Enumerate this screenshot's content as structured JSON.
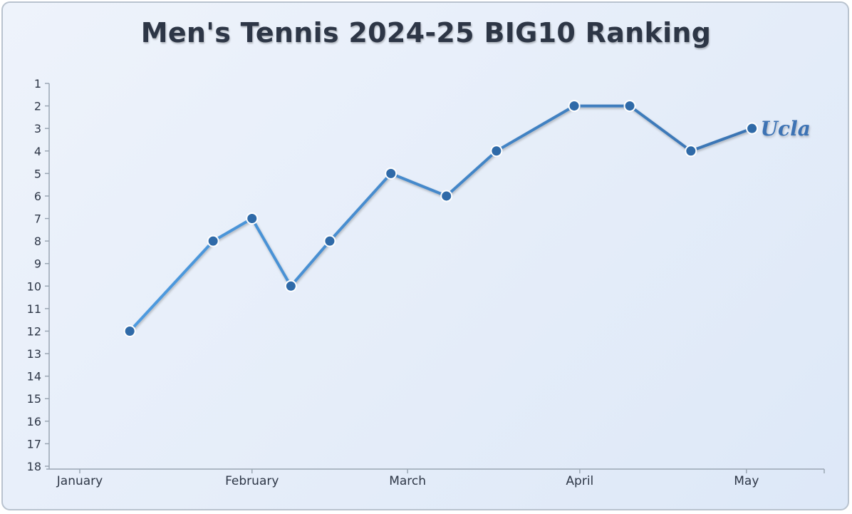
{
  "chart_data": {
    "type": "line",
    "title": "Men's Tennis 2024-25 BIG10 Ranking",
    "xlabel": "",
    "ylabel": "",
    "y_inverted": true,
    "ylim": [
      1,
      18
    ],
    "yticks": [
      1,
      2,
      3,
      4,
      5,
      6,
      7,
      8,
      9,
      10,
      11,
      12,
      13,
      14,
      15,
      16,
      17,
      18
    ],
    "xlim": [
      "2025-01-01",
      "2025-05-15"
    ],
    "month_ticks": [
      {
        "label": "January",
        "date": "2025-01-01"
      },
      {
        "label": "February",
        "date": "2025-02-01"
      },
      {
        "label": "March",
        "date": "2025-03-01"
      },
      {
        "label": "April",
        "date": "2025-04-01"
      },
      {
        "label": "May",
        "date": "2025-05-01"
      }
    ],
    "grid": false,
    "series": [
      {
        "name": "Ucla",
        "points": [
          {
            "x": "2025-01-10",
            "y": 12
          },
          {
            "x": "2025-01-25",
            "y": 8
          },
          {
            "x": "2025-02-01",
            "y": 7
          },
          {
            "x": "2025-02-08",
            "y": 10
          },
          {
            "x": "2025-02-15",
            "y": 8
          },
          {
            "x": "2025-02-26",
            "y": 5
          },
          {
            "x": "2025-03-08",
            "y": 6
          },
          {
            "x": "2025-03-17",
            "y": 4
          },
          {
            "x": "2025-03-31",
            "y": 2
          },
          {
            "x": "2025-04-10",
            "y": 2
          },
          {
            "x": "2025-04-21",
            "y": 4
          },
          {
            "x": "2025-05-02",
            "y": 3
          }
        ]
      }
    ],
    "colors": {
      "line_start": "#4e9be0",
      "line_end": "#3a74b3",
      "marker_fill": "#2f6aa8",
      "marker_stroke": "#ffffff",
      "axis": "#9aa6b3",
      "text": "#2d3646"
    }
  }
}
